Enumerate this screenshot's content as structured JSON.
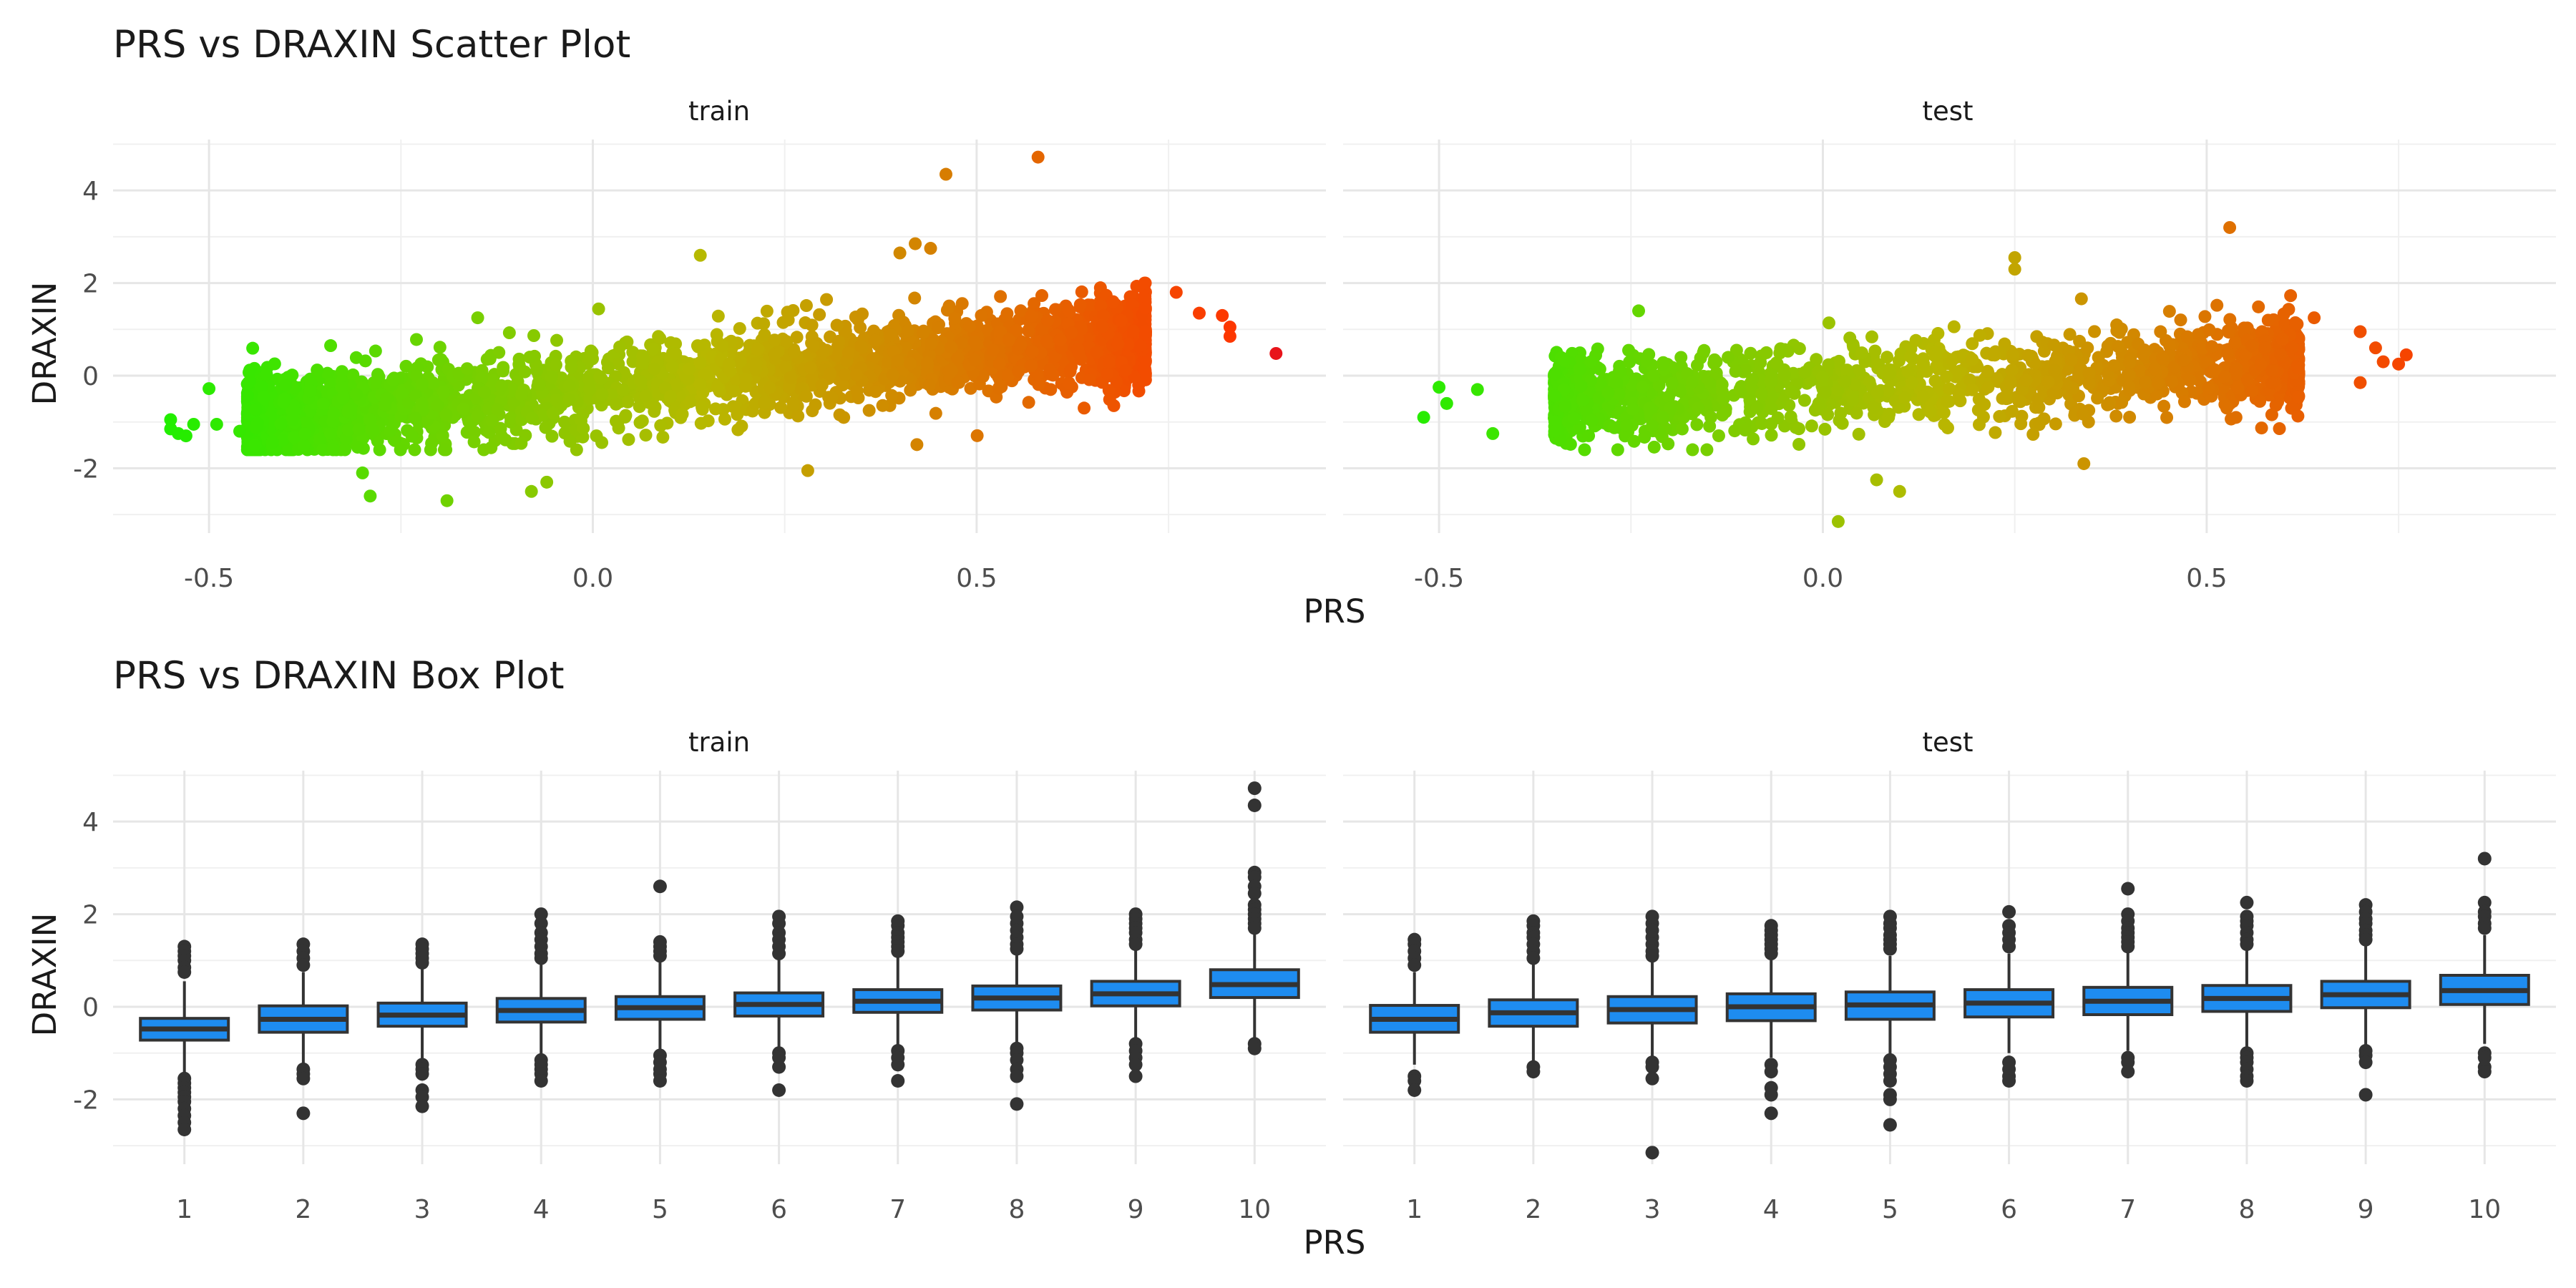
{
  "chart_data": [
    {
      "type": "scatter",
      "title": "PRS vs DRAXIN Scatter Plot",
      "xlabel": "PRS",
      "ylabel": "DRAXIN",
      "color_scale": {
        "low": "#22ee00",
        "mid": "#b8b800",
        "high": "#ff3300",
        "extreme": "#e8141a"
      },
      "grid": true,
      "shared_y": true,
      "ylim": [
        -3.4,
        5.1
      ],
      "y_ticks": [
        -2,
        0,
        2,
        4
      ],
      "panels": [
        {
          "name": "train",
          "xlim": [
            -0.625,
            0.955
          ],
          "x_ticks": [
            -0.5,
            0.0,
            0.5
          ],
          "x_tick_labels": [
            "-0.5",
            "0.0",
            "0.5"
          ],
          "trend": {
            "intercept": -0.26,
            "slope": 1.95
          },
          "x_range_bulk": [
            -0.45,
            0.72
          ],
          "n_bulk": 2800,
          "points": [
            {
              "x": -0.55,
              "y": -0.95
            },
            {
              "x": -0.55,
              "y": -1.15
            },
            {
              "x": -0.54,
              "y": -1.25
            },
            {
              "x": -0.53,
              "y": -1.3
            },
            {
              "x": -0.5,
              "y": -0.28
            },
            {
              "x": -0.49,
              "y": -1.05
            },
            {
              "x": -0.52,
              "y": -1.05
            },
            {
              "x": -0.46,
              "y": -1.2
            },
            {
              "x": -0.44,
              "y": -1.5
            },
            {
              "x": -0.3,
              "y": -2.1
            },
            {
              "x": -0.29,
              "y": -2.6
            },
            {
              "x": -0.19,
              "y": -2.7
            },
            {
              "x": -0.08,
              "y": -2.5
            },
            {
              "x": -0.06,
              "y": -2.3
            },
            {
              "x": -0.15,
              "y": 1.25
            },
            {
              "x": 0.14,
              "y": 2.6
            },
            {
              "x": 0.28,
              "y": -2.05
            },
            {
              "x": 0.4,
              "y": 2.65
            },
            {
              "x": 0.42,
              "y": 2.85
            },
            {
              "x": 0.44,
              "y": 2.75
            },
            {
              "x": 0.46,
              "y": 4.35
            },
            {
              "x": 0.58,
              "y": 4.72
            },
            {
              "x": 0.64,
              "y": -0.7
            },
            {
              "x": 0.76,
              "y": 1.8
            },
            {
              "x": 0.79,
              "y": 1.35
            },
            {
              "x": 0.82,
              "y": 1.3
            },
            {
              "x": 0.83,
              "y": 1.05
            },
            {
              "x": 0.83,
              "y": 0.85
            },
            {
              "x": 0.89,
              "y": 0.48
            }
          ]
        },
        {
          "name": "test",
          "xlim": [
            -0.625,
            0.955
          ],
          "x_ticks": [
            -0.5,
            0.0,
            0.5
          ],
          "x_tick_labels": [
            "-0.5",
            "0.0",
            "0.5"
          ],
          "trend": {
            "intercept": -0.26,
            "slope": 1.15
          },
          "x_range_bulk": [
            -0.35,
            0.62
          ],
          "n_bulk": 1600,
          "points": [
            {
              "x": -0.52,
              "y": -0.9
            },
            {
              "x": -0.5,
              "y": -0.25
            },
            {
              "x": -0.49,
              "y": -0.6
            },
            {
              "x": -0.45,
              "y": -0.3
            },
            {
              "x": -0.43,
              "y": -1.25
            },
            {
              "x": -0.24,
              "y": 1.4
            },
            {
              "x": 0.02,
              "y": -3.15
            },
            {
              "x": 0.07,
              "y": -2.25
            },
            {
              "x": 0.1,
              "y": -2.5
            },
            {
              "x": 0.25,
              "y": 2.3
            },
            {
              "x": 0.25,
              "y": 2.55
            },
            {
              "x": 0.34,
              "y": -1.9
            },
            {
              "x": 0.53,
              "y": 3.2
            },
            {
              "x": 0.64,
              "y": 1.25
            },
            {
              "x": 0.7,
              "y": 0.95
            },
            {
              "x": 0.72,
              "y": 0.6
            },
            {
              "x": 0.73,
              "y": 0.3
            },
            {
              "x": 0.7,
              "y": -0.15
            },
            {
              "x": 0.76,
              "y": 0.45
            },
            {
              "x": 0.75,
              "y": 0.25
            }
          ]
        }
      ]
    },
    {
      "type": "box",
      "title": "PRS vs DRAXIN Box Plot",
      "xlabel": "PRS",
      "ylabel": "DRAXIN",
      "box_color": "#1e8cf0",
      "grid": true,
      "shared_y": true,
      "ylim": [
        -3.4,
        5.1
      ],
      "y_ticks": [
        -2,
        0,
        2,
        4
      ],
      "categories": [
        "1",
        "2",
        "3",
        "4",
        "5",
        "6",
        "7",
        "8",
        "9",
        "10"
      ],
      "panels": [
        {
          "name": "train",
          "boxes": [
            {
              "category": "1",
              "q1": -0.72,
              "median": -0.48,
              "q3": -0.25,
              "lower": -1.5,
              "upper": 0.55,
              "outliers": [
                1.3,
                1.2,
                1.1,
                1.0,
                0.85,
                0.75,
                -1.55,
                -1.65,
                -1.75,
                -1.85,
                -1.95,
                -2.05,
                -2.2,
                -2.35,
                -2.5,
                -2.65
              ]
            },
            {
              "category": "2",
              "q1": -0.55,
              "median": -0.27,
              "q3": 0.02,
              "lower": -1.25,
              "upper": 0.75,
              "outliers": [
                1.35,
                1.2,
                1.05,
                0.9,
                -1.35,
                -1.45,
                -1.55,
                -2.3
              ]
            },
            {
              "category": "3",
              "q1": -0.42,
              "median": -0.18,
              "q3": 0.08,
              "lower": -1.15,
              "upper": 0.85,
              "outliers": [
                1.35,
                1.25,
                1.15,
                1.05,
                0.95,
                -1.25,
                -1.35,
                -1.45,
                -1.8,
                -1.95,
                -2.15
              ]
            },
            {
              "category": "4",
              "q1": -0.33,
              "median": -0.08,
              "q3": 0.18,
              "lower": -1.05,
              "upper": 0.95,
              "outliers": [
                2.0,
                1.8,
                1.6,
                1.45,
                1.3,
                1.15,
                1.05,
                -1.15,
                -1.25,
                -1.35,
                -1.45,
                -1.6
              ]
            },
            {
              "category": "5",
              "q1": -0.27,
              "median": -0.02,
              "q3": 0.22,
              "lower": -0.95,
              "upper": 1.0,
              "outliers": [
                2.6,
                1.4,
                1.3,
                1.2,
                1.1,
                -1.05,
                -1.2,
                -1.35,
                -1.45,
                -1.6
              ]
            },
            {
              "category": "6",
              "q1": -0.2,
              "median": 0.05,
              "q3": 0.3,
              "lower": -0.95,
              "upper": 1.05,
              "outliers": [
                1.95,
                1.8,
                1.6,
                1.45,
                1.3,
                1.15,
                -1.0,
                -1.1,
                -1.3,
                -1.8
              ]
            },
            {
              "category": "7",
              "q1": -0.12,
              "median": 0.12,
              "q3": 0.37,
              "lower": -0.85,
              "upper": 1.1,
              "outliers": [
                1.85,
                1.75,
                1.6,
                1.5,
                1.4,
                1.3,
                1.2,
                -0.95,
                -1.1,
                -1.25,
                -1.6
              ]
            },
            {
              "category": "8",
              "q1": -0.07,
              "median": 0.19,
              "q3": 0.45,
              "lower": -0.82,
              "upper": 1.2,
              "outliers": [
                2.15,
                1.95,
                1.8,
                1.65,
                1.5,
                1.35,
                1.25,
                -0.9,
                -1.0,
                -1.15,
                -1.35,
                -1.5,
                -2.1
              ]
            },
            {
              "category": "9",
              "q1": 0.02,
              "median": 0.28,
              "q3": 0.55,
              "lower": -0.72,
              "upper": 1.3,
              "outliers": [
                2.0,
                1.9,
                1.8,
                1.7,
                1.6,
                1.45,
                1.35,
                -0.8,
                -0.95,
                -1.1,
                -1.25,
                -1.5
              ]
            },
            {
              "category": "10",
              "q1": 0.2,
              "median": 0.48,
              "q3": 0.8,
              "lower": -0.75,
              "upper": 1.6,
              "outliers": [
                4.72,
                4.35,
                2.9,
                2.8,
                2.6,
                2.45,
                2.2,
                2.1,
                2.0,
                1.9,
                1.8,
                1.7,
                -0.8,
                -0.9
              ]
            }
          ]
        },
        {
          "name": "test",
          "boxes": [
            {
              "category": "1",
              "q1": -0.55,
              "median": -0.27,
              "q3": 0.03,
              "lower": -1.25,
              "upper": 0.75,
              "outliers": [
                1.45,
                1.35,
                1.2,
                1.05,
                0.9,
                -1.5,
                -1.6,
                -1.8
              ]
            },
            {
              "category": "2",
              "q1": -0.42,
              "median": -0.13,
              "q3": 0.15,
              "lower": -1.2,
              "upper": 0.95,
              "outliers": [
                1.85,
                1.75,
                1.6,
                1.5,
                1.35,
                1.2,
                1.05,
                -1.3,
                -1.4
              ]
            },
            {
              "category": "3",
              "q1": -0.35,
              "median": -0.06,
              "q3": 0.22,
              "lower": -1.1,
              "upper": 1.0,
              "outliers": [
                1.95,
                1.8,
                1.65,
                1.5,
                1.35,
                1.2,
                1.1,
                -1.2,
                -1.3,
                -1.55,
                -3.15
              ]
            },
            {
              "category": "4",
              "q1": -0.3,
              "median": 0.0,
              "q3": 0.28,
              "lower": -1.1,
              "upper": 1.05,
              "outliers": [
                1.75,
                1.65,
                1.55,
                1.45,
                1.35,
                1.25,
                1.15,
                -1.25,
                -1.4,
                -1.75,
                -1.9,
                -2.3
              ]
            },
            {
              "category": "5",
              "q1": -0.27,
              "median": 0.04,
              "q3": 0.32,
              "lower": -1.05,
              "upper": 1.1,
              "outliers": [
                1.95,
                1.8,
                1.7,
                1.55,
                1.45,
                1.35,
                1.25,
                -1.15,
                -1.3,
                -1.45,
                -1.6,
                -1.9,
                -2.0,
                -2.55
              ]
            },
            {
              "category": "6",
              "q1": -0.22,
              "median": 0.08,
              "q3": 0.37,
              "lower": -1.0,
              "upper": 1.15,
              "outliers": [
                2.05,
                1.75,
                1.6,
                1.45,
                1.3,
                -1.2,
                -1.35,
                -1.5,
                -1.6
              ]
            },
            {
              "category": "7",
              "q1": -0.17,
              "median": 0.12,
              "q3": 0.42,
              "lower": -0.95,
              "upper": 1.2,
              "outliers": [
                2.55,
                2.0,
                1.85,
                1.7,
                1.6,
                1.5,
                1.4,
                1.3,
                -1.1,
                -1.2,
                -1.4
              ]
            },
            {
              "category": "8",
              "q1": -0.1,
              "median": 0.18,
              "q3": 0.46,
              "lower": -0.9,
              "upper": 1.25,
              "outliers": [
                2.25,
                1.95,
                1.85,
                1.75,
                1.6,
                1.45,
                1.35,
                -1.0,
                -1.1,
                -1.2,
                -1.35,
                -1.5,
                -1.6
              ]
            },
            {
              "category": "9",
              "q1": -0.02,
              "median": 0.26,
              "q3": 0.55,
              "lower": -0.85,
              "upper": 1.35,
              "outliers": [
                2.2,
                2.05,
                1.9,
                1.8,
                1.65,
                1.55,
                1.45,
                -0.95,
                -1.05,
                -1.2,
                -1.9
              ]
            },
            {
              "category": "10",
              "q1": 0.05,
              "median": 0.35,
              "q3": 0.68,
              "lower": -0.8,
              "upper": 1.55,
              "outliers": [
                3.2,
                2.25,
                2.05,
                1.95,
                1.8,
                1.7,
                -1.0,
                -1.1,
                -1.3,
                -1.4
              ]
            }
          ]
        }
      ]
    }
  ]
}
